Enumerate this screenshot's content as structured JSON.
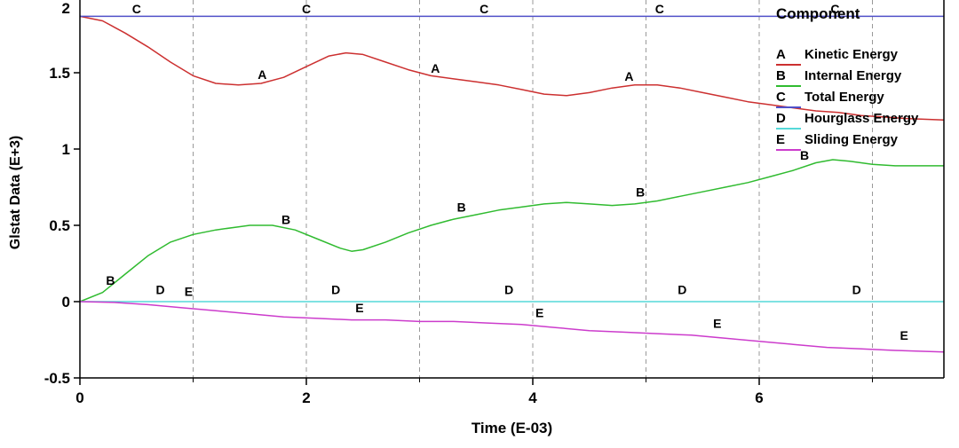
{
  "chart_data": {
    "type": "line",
    "xlabel": "Time (E-03)",
    "ylabel": "Glstat Data (E+3)",
    "xlim": [
      0,
      7.63
    ],
    "ylim": [
      -0.5,
      2.03
    ],
    "grid": "vertical-dashed",
    "grid_x": [
      1,
      2,
      3,
      4,
      5,
      6,
      7
    ],
    "x_ticks": [
      {
        "v": 0,
        "t": "0"
      },
      {
        "v": 2,
        "t": "2"
      },
      {
        "v": 4,
        "t": "4"
      },
      {
        "v": 6,
        "t": "6"
      }
    ],
    "x_minor_ticks": [
      1,
      3,
      5,
      7
    ],
    "y_ticks": [
      {
        "v": 2,
        "t": "2"
      },
      {
        "v": 1.5,
        "t": "1.5"
      },
      {
        "v": 1,
        "t": "1"
      },
      {
        "v": 0.5,
        "t": "0.5"
      },
      {
        "v": 0,
        "t": "0"
      },
      {
        "v": -0.5,
        "t": "-0.5"
      }
    ],
    "legend": {
      "title": "Component",
      "position": "top-right"
    },
    "series": [
      {
        "key": "A",
        "name": "Kinetic Energy",
        "color": "#cc3030",
        "points": [
          [
            0,
            1.87
          ],
          [
            0.2,
            1.84
          ],
          [
            0.4,
            1.76
          ],
          [
            0.6,
            1.67
          ],
          [
            0.8,
            1.57
          ],
          [
            1.0,
            1.48
          ],
          [
            1.2,
            1.43
          ],
          [
            1.4,
            1.42
          ],
          [
            1.6,
            1.43
          ],
          [
            1.8,
            1.47
          ],
          [
            2.0,
            1.54
          ],
          [
            2.2,
            1.61
          ],
          [
            2.35,
            1.63
          ],
          [
            2.5,
            1.62
          ],
          [
            2.7,
            1.57
          ],
          [
            2.9,
            1.52
          ],
          [
            3.1,
            1.48
          ],
          [
            3.3,
            1.46
          ],
          [
            3.5,
            1.44
          ],
          [
            3.7,
            1.42
          ],
          [
            3.9,
            1.39
          ],
          [
            4.1,
            1.36
          ],
          [
            4.3,
            1.35
          ],
          [
            4.5,
            1.37
          ],
          [
            4.7,
            1.4
          ],
          [
            4.9,
            1.42
          ],
          [
            5.1,
            1.42
          ],
          [
            5.3,
            1.4
          ],
          [
            5.5,
            1.37
          ],
          [
            5.7,
            1.34
          ],
          [
            5.9,
            1.31
          ],
          [
            6.1,
            1.29
          ],
          [
            6.3,
            1.27
          ],
          [
            6.5,
            1.25
          ],
          [
            6.7,
            1.24
          ],
          [
            6.9,
            1.22
          ],
          [
            7.1,
            1.21
          ],
          [
            7.3,
            1.2
          ],
          [
            7.63,
            1.19
          ]
        ],
        "marker_positions": [
          [
            1.61,
            1.43
          ],
          [
            3.14,
            1.47
          ],
          [
            4.85,
            1.42
          ]
        ]
      },
      {
        "key": "B",
        "name": "Internal Energy",
        "color": "#30bb30",
        "points": [
          [
            0,
            0
          ],
          [
            0.2,
            0.06
          ],
          [
            0.4,
            0.18
          ],
          [
            0.6,
            0.3
          ],
          [
            0.8,
            0.39
          ],
          [
            1.0,
            0.44
          ],
          [
            1.2,
            0.47
          ],
          [
            1.4,
            0.49
          ],
          [
            1.5,
            0.5
          ],
          [
            1.7,
            0.5
          ],
          [
            1.9,
            0.47
          ],
          [
            2.1,
            0.41
          ],
          [
            2.3,
            0.35
          ],
          [
            2.4,
            0.33
          ],
          [
            2.5,
            0.34
          ],
          [
            2.7,
            0.39
          ],
          [
            2.9,
            0.45
          ],
          [
            3.1,
            0.5
          ],
          [
            3.3,
            0.54
          ],
          [
            3.5,
            0.57
          ],
          [
            3.7,
            0.6
          ],
          [
            3.9,
            0.62
          ],
          [
            4.1,
            0.64
          ],
          [
            4.3,
            0.65
          ],
          [
            4.5,
            0.64
          ],
          [
            4.7,
            0.63
          ],
          [
            4.9,
            0.64
          ],
          [
            5.1,
            0.66
          ],
          [
            5.3,
            0.69
          ],
          [
            5.5,
            0.72
          ],
          [
            5.7,
            0.75
          ],
          [
            5.9,
            0.78
          ],
          [
            6.1,
            0.82
          ],
          [
            6.3,
            0.86
          ],
          [
            6.5,
            0.91
          ],
          [
            6.65,
            0.93
          ],
          [
            6.8,
            0.92
          ],
          [
            7.0,
            0.9
          ],
          [
            7.2,
            0.89
          ],
          [
            7.4,
            0.89
          ],
          [
            7.63,
            0.89
          ]
        ],
        "marker_positions": [
          [
            0.27,
            0.08
          ],
          [
            1.82,
            0.48
          ],
          [
            3.37,
            0.56
          ],
          [
            4.95,
            0.66
          ],
          [
            6.4,
            0.9
          ]
        ]
      },
      {
        "key": "C",
        "name": "Total Energy",
        "color": "#5050c8",
        "points": [
          [
            0,
            1.87
          ],
          [
            7.63,
            1.87
          ]
        ],
        "marker_positions": [
          [
            0.5,
            1.87
          ],
          [
            2.0,
            1.87
          ],
          [
            3.57,
            1.87
          ],
          [
            5.12,
            1.87
          ],
          [
            6.67,
            1.87
          ]
        ]
      },
      {
        "key": "D",
        "name": "Hourglass Energy",
        "color": "#55d8d8",
        "points": [
          [
            0,
            0
          ],
          [
            7.63,
            0
          ]
        ],
        "marker_positions": [
          [
            0.71,
            0.02
          ],
          [
            2.26,
            0.02
          ],
          [
            3.79,
            0.02
          ],
          [
            5.32,
            0.02
          ],
          [
            6.86,
            0.02
          ]
        ]
      },
      {
        "key": "E",
        "name": "Sliding Energy",
        "color": "#cc3ccc",
        "points": [
          [
            0,
            0
          ],
          [
            0.3,
            -0.005
          ],
          [
            0.6,
            -0.02
          ],
          [
            0.9,
            -0.04
          ],
          [
            1.2,
            -0.06
          ],
          [
            1.5,
            -0.08
          ],
          [
            1.8,
            -0.1
          ],
          [
            2.1,
            -0.11
          ],
          [
            2.4,
            -0.12
          ],
          [
            2.7,
            -0.12
          ],
          [
            3.0,
            -0.13
          ],
          [
            3.3,
            -0.13
          ],
          [
            3.6,
            -0.14
          ],
          [
            3.9,
            -0.15
          ],
          [
            4.2,
            -0.17
          ],
          [
            4.5,
            -0.19
          ],
          [
            4.8,
            -0.2
          ],
          [
            5.1,
            -0.21
          ],
          [
            5.4,
            -0.22
          ],
          [
            5.7,
            -0.24
          ],
          [
            6.0,
            -0.26
          ],
          [
            6.3,
            -0.28
          ],
          [
            6.6,
            -0.3
          ],
          [
            6.9,
            -0.31
          ],
          [
            7.2,
            -0.32
          ],
          [
            7.63,
            -0.33
          ]
        ],
        "marker_positions": [
          [
            0.96,
            0.01
          ],
          [
            2.47,
            -0.1
          ],
          [
            4.06,
            -0.13
          ],
          [
            5.63,
            -0.2
          ],
          [
            7.28,
            -0.28
          ]
        ]
      }
    ]
  },
  "style": {
    "grid_color": "#999999",
    "axis_color": "#000000",
    "text_color": "#000000",
    "marker_font_size": 14,
    "tick_font_size": 17
  }
}
